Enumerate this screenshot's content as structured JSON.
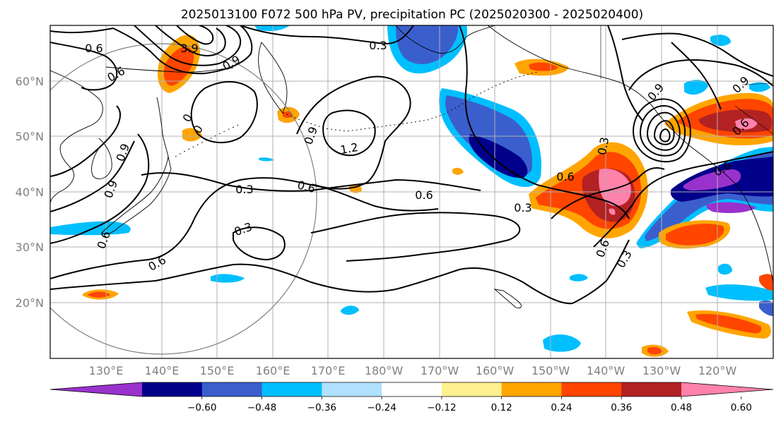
{
  "title": "2025013100 F072 500 hPa PV, precipitation PC (2025020300 - 2025020400)",
  "lat_labels": [
    "60°N",
    "50°N",
    "40°N",
    "30°N",
    "20°N"
  ],
  "lon_labels": [
    "130°E",
    "140°E",
    "150°E",
    "160°E",
    "170°E",
    "180°W",
    "170°W",
    "160°W",
    "150°W",
    "140°W",
    "130°W",
    "120°W"
  ],
  "colorbar": {
    "colors": [
      "#9932cc",
      "#00008b",
      "#3a5fcd",
      "#00bfff",
      "#b0e2ff",
      "#ffffff",
      "#fff08f",
      "#ffa500",
      "#ff4500",
      "#b22222",
      "#ff82ab"
    ],
    "tick_labels": [
      "−0.60",
      "−0.48",
      "−0.36",
      "−0.24",
      "−0.12",
      "0.12",
      "0.24",
      "0.36",
      "0.48",
      "0.60"
    ]
  },
  "contour_labels": [
    "0.6",
    "0.6",
    "3.9",
    "0.9",
    "0.3",
    "0",
    "0",
    "0.9",
    "1.2",
    "0.9",
    "0.6",
    "0.3",
    "0.9",
    "0.9",
    "0.3",
    "0.3",
    "0.6",
    "0.6",
    "0.6",
    "0.9",
    "0.6",
    "0.6",
    "0.3",
    "0.6",
    "0.3",
    "0.6"
  ]
}
